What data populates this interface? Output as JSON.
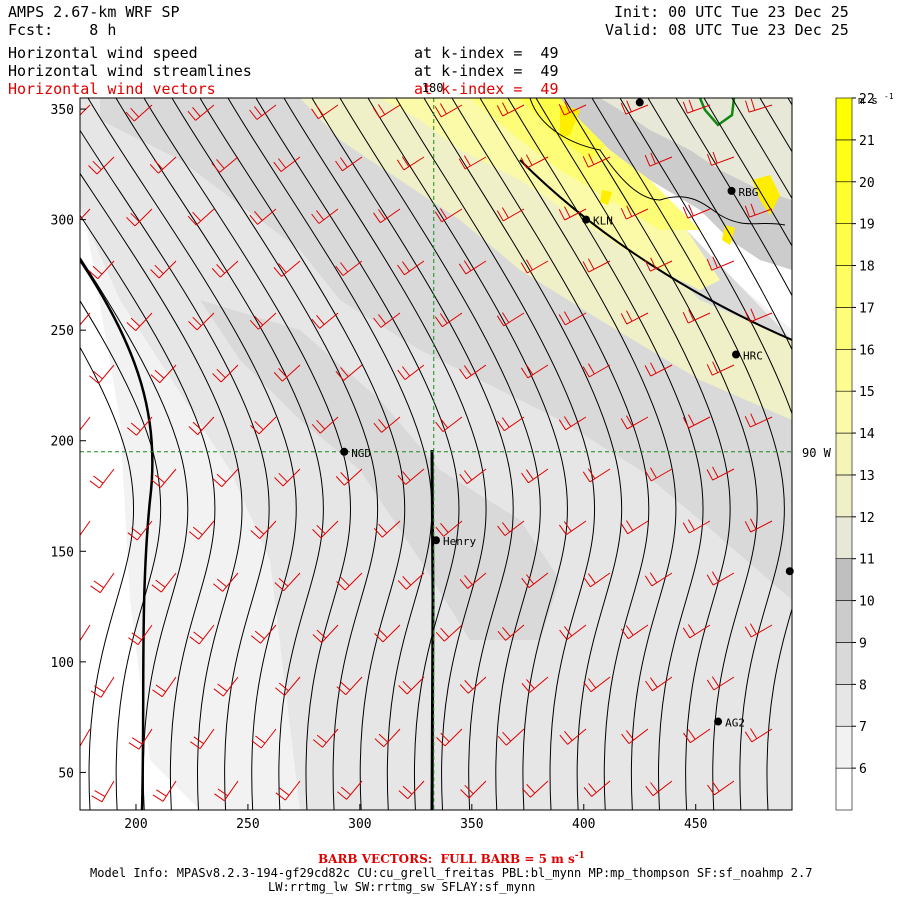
{
  "header": {
    "model_title": "AMPS 2.67-km WRF SP",
    "forecast": "Fcst:    8 h",
    "init": "Init: 00 UTC Tue 23 Dec 25",
    "valid": "Valid: 08 UTC Tue 23 Dec 25",
    "fields": [
      {
        "name": "Horizontal wind speed",
        "level": "at k-index =  49",
        "color": "#000000"
      },
      {
        "name": "Horizontal wind streamlines",
        "level": "at k-index =  49",
        "color": "#000000"
      },
      {
        "name": "Horizontal wind vectors",
        "level": "at k-index =  49",
        "color": "#e00000"
      }
    ]
  },
  "chart_data": {
    "type": "heatmap",
    "title": "Horizontal wind speed",
    "xlim": [
      175,
      493
    ],
    "ylim": [
      33,
      355
    ],
    "x_ticks": [
      "200",
      "250",
      "300",
      "350",
      "400",
      "450"
    ],
    "y_ticks": [
      "50",
      "100",
      "150",
      "200",
      "250",
      "300",
      "350"
    ],
    "x_tick_values": [
      200,
      250,
      300,
      350,
      400,
      450
    ],
    "y_tick_values": [
      50,
      100,
      150,
      200,
      250,
      300,
      350
    ],
    "grid_reference": {
      "meridian_label": "180",
      "meridian_x": 333,
      "parallel_label": "90 W",
      "parallel_y": 195
    },
    "colorbar": {
      "unit": "m s",
      "unit_superscript": "-1",
      "levels": [
        "6",
        "7",
        "8",
        "9",
        "10",
        "11",
        "12",
        "13",
        "14",
        "15",
        "16",
        "17",
        "18",
        "19",
        "20",
        "21",
        "22"
      ],
      "colors": [
        "#ffffff",
        "#f2f2f2",
        "#e6e6e6",
        "#d9d9d9",
        "#cccccc",
        "#bfbfbf",
        "#e8e8d8",
        "#f0f0c8",
        "#f5f5b8",
        "#fafaa8",
        "#fcfc90",
        "#fdfd78",
        "#fefe60",
        "#fefe48",
        "#ffff30",
        "#ffff18",
        "#ffff00"
      ]
    },
    "stations": [
      {
        "label": "NGD",
        "x": 293,
        "y": 195
      },
      {
        "label": "Henry",
        "x": 334,
        "y": 155
      },
      {
        "label": "KLN",
        "x": 401,
        "y": 300
      },
      {
        "label": "RBG",
        "x": 466,
        "y": 313
      },
      {
        "label": "HRC",
        "x": 468,
        "y": 239
      },
      {
        "label": "AG2",
        "x": 460,
        "y": 73
      },
      {
        "label": "",
        "x": 425,
        "y": 353
      },
      {
        "label": "",
        "x": 492,
        "y": 141
      }
    ]
  },
  "footer": {
    "barb_note": "BARB VECTORS:  FULL BARB = 5 m s",
    "barb_sup": "-1",
    "model_info_1": "Model Info: MPASv8.2.3-194-gf29cd82c CU:cu_grell_freitas PBL:bl_mynn MP:mp_thompson SF:sf_noahmp 2.7",
    "model_info_2": "LW:rrtmg_lw SW:rrtmg_sw SFLAY:sf_mynn"
  }
}
